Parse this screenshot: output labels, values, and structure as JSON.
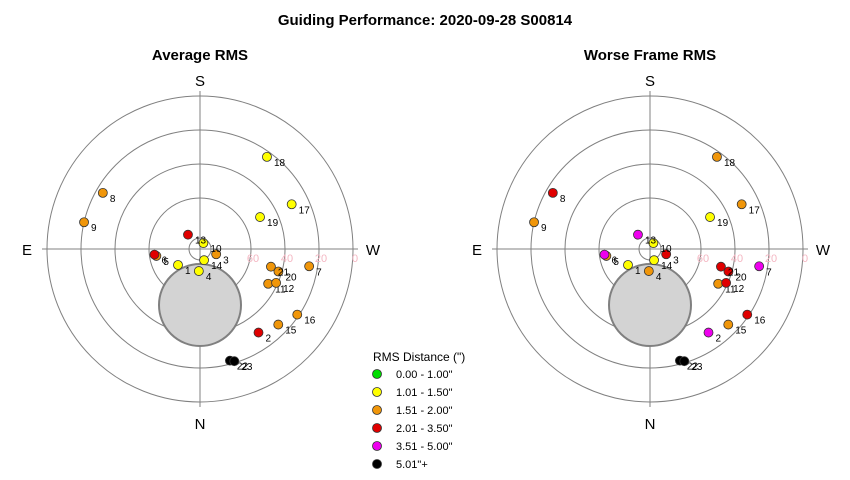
{
  "title": "Guiding Performance: 2020-09-28 S00814",
  "directions": {
    "north": "N",
    "south": "S",
    "east": "E",
    "west": "W"
  },
  "altitude_labels": [
    "60",
    "40",
    "20",
    "0"
  ],
  "legend": {
    "title": "RMS Distance (\")",
    "entries": [
      {
        "label": "0.00 - 1.00\"",
        "color": "#00dd00"
      },
      {
        "label": "1.01 - 1.50\"",
        "color": "#ffff00"
      },
      {
        "label": "1.51 - 2.00\"",
        "color": "#f0960a"
      },
      {
        "label": "2.01 - 3.50\"",
        "color": "#e00000"
      },
      {
        "label": "3.51 - 5.00\"",
        "color": "#ee00ee"
      },
      {
        "label": "5.01\"+",
        "color": "#000000"
      }
    ]
  },
  "chart_data": [
    {
      "type": "scatter",
      "subtitle": "Average RMS",
      "projection": "polar",
      "radial_axis": "altitude (90 center, 0 edge)",
      "points": [
        {
          "label": "1",
          "az": 234,
          "alt": 74,
          "color": "#ffff00"
        },
        {
          "label": "2",
          "az": 145,
          "alt": 30,
          "color": "#e00000"
        },
        {
          "label": "3",
          "az": 108,
          "alt": 80,
          "color": "#f0960a"
        },
        {
          "label": "4",
          "az": 183,
          "alt": 77,
          "color": "#ffff00"
        },
        {
          "label": "5",
          "az": 261,
          "alt": 64,
          "color": "#f0960a"
        },
        {
          "label": "6",
          "az": 263,
          "alt": 63,
          "color": "#e00000"
        },
        {
          "label": "7",
          "az": 99,
          "alt": 25,
          "color": "#f0960a"
        },
        {
          "label": "8",
          "az": 300,
          "alt": 24,
          "color": "#f0960a"
        },
        {
          "label": "9",
          "az": 283,
          "alt": 20,
          "color": "#f0960a"
        },
        {
          "label": "10",
          "az": 30,
          "alt": 86,
          "color": "#ffff00"
        },
        {
          "label": "11",
          "az": 117,
          "alt": 45,
          "color": "#f0960a"
        },
        {
          "label": "12",
          "az": 114,
          "alt": 41,
          "color": "#f0960a"
        },
        {
          "label": "13",
          "az": 320,
          "alt": 79,
          "color": "#e00000"
        },
        {
          "label": "14",
          "az": 160,
          "alt": 83,
          "color": "#ffff00"
        },
        {
          "label": "15",
          "az": 134,
          "alt": 26,
          "color": "#f0960a"
        },
        {
          "label": "16",
          "az": 124,
          "alt": 21,
          "color": "#f0960a"
        },
        {
          "label": "17",
          "az": 64,
          "alt": 30,
          "color": "#ffff00"
        },
        {
          "label": "18",
          "az": 36,
          "alt": 23,
          "color": "#ffff00"
        },
        {
          "label": "19",
          "az": 62,
          "alt": 50,
          "color": "#ffff00"
        },
        {
          "label": "20",
          "az": 106,
          "alt": 42,
          "color": "#f0960a"
        },
        {
          "label": "21",
          "az": 104,
          "alt": 47,
          "color": "#f0960a"
        },
        {
          "label": "22",
          "az": 165,
          "alt": 22,
          "color": "#000000"
        },
        {
          "label": "23",
          "az": 163,
          "alt": 21,
          "color": "#000000"
        }
      ],
      "obscured_region": true
    },
    {
      "type": "scatter",
      "subtitle": "Worse Frame RMS",
      "projection": "polar",
      "radial_axis": "altitude (90 center, 0 edge)",
      "points": [
        {
          "label": "1",
          "az": 234,
          "alt": 74,
          "color": "#ffff00"
        },
        {
          "label": "2",
          "az": 145,
          "alt": 30,
          "color": "#ee00ee"
        },
        {
          "label": "3",
          "az": 108,
          "alt": 80,
          "color": "#e00000"
        },
        {
          "label": "4",
          "az": 183,
          "alt": 77,
          "color": "#f0960a"
        },
        {
          "label": "5",
          "az": 261,
          "alt": 64,
          "color": "#f0960a"
        },
        {
          "label": "6",
          "az": 263,
          "alt": 63,
          "color": "#ee00ee"
        },
        {
          "label": "7",
          "az": 99,
          "alt": 25,
          "color": "#ee00ee"
        },
        {
          "label": "8",
          "az": 300,
          "alt": 24,
          "color": "#e00000"
        },
        {
          "label": "9",
          "az": 283,
          "alt": 20,
          "color": "#f0960a"
        },
        {
          "label": "10",
          "az": 30,
          "alt": 86,
          "color": "#ffff00"
        },
        {
          "label": "11",
          "az": 117,
          "alt": 45,
          "color": "#f0960a"
        },
        {
          "label": "12",
          "az": 114,
          "alt": 41,
          "color": "#e00000"
        },
        {
          "label": "13",
          "az": 320,
          "alt": 79,
          "color": "#ee00ee"
        },
        {
          "label": "14",
          "az": 160,
          "alt": 83,
          "color": "#ffff00"
        },
        {
          "label": "15",
          "az": 134,
          "alt": 26,
          "color": "#f0960a"
        },
        {
          "label": "16",
          "az": 124,
          "alt": 21,
          "color": "#e00000"
        },
        {
          "label": "17",
          "az": 64,
          "alt": 30,
          "color": "#f0960a"
        },
        {
          "label": "18",
          "az": 36,
          "alt": 23,
          "color": "#f0960a"
        },
        {
          "label": "19",
          "az": 62,
          "alt": 50,
          "color": "#ffff00"
        },
        {
          "label": "20",
          "az": 106,
          "alt": 42,
          "color": "#e00000"
        },
        {
          "label": "21",
          "az": 104,
          "alt": 47,
          "color": "#e00000"
        },
        {
          "label": "22",
          "az": 165,
          "alt": 22,
          "color": "#000000"
        },
        {
          "label": "23",
          "az": 163,
          "alt": 21,
          "color": "#000000"
        }
      ],
      "obscured_region": true
    }
  ]
}
